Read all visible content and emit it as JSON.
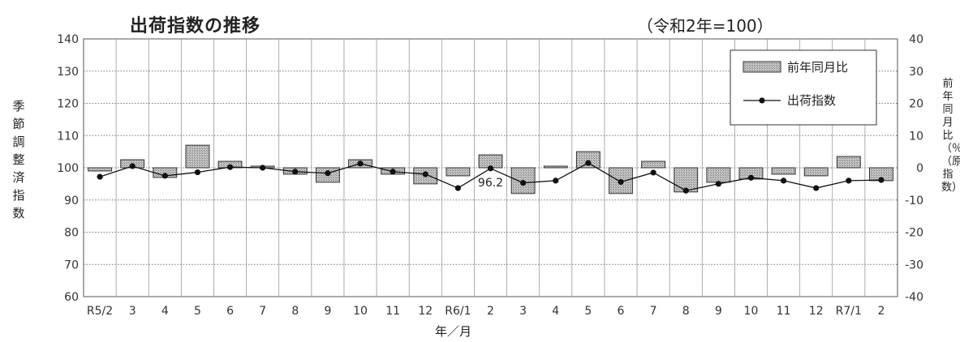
{
  "chart_data": {
    "type": "bar+line",
    "title": "出荷指数の推移",
    "subtitle": "（令和2年=100）",
    "xlabel": "年／月",
    "ylabel_left": "季節調整済指数",
    "ylabel_right": "前年同月比（％）（原指数）",
    "categories": [
      "R5/2",
      "3",
      "4",
      "5",
      "6",
      "7",
      "8",
      "9",
      "10",
      "11",
      "12",
      "R6/1",
      "2",
      "3",
      "4",
      "5",
      "6",
      "7",
      "8",
      "9",
      "10",
      "11",
      "12",
      "R7/1",
      "2"
    ],
    "left_axis": {
      "ylim": [
        60,
        140
      ],
      "ticks": [
        "140",
        "130",
        "120",
        "110",
        "100",
        "90",
        "80",
        "70",
        "60"
      ]
    },
    "right_axis": {
      "ylim": [
        -40,
        40
      ],
      "ticks": [
        "40",
        "30",
        "20",
        "10",
        "0",
        "-10",
        "-20",
        "-30",
        "-40"
      ]
    },
    "series": [
      {
        "name": "前年同月比",
        "type": "bar",
        "axis": "right",
        "values": [
          -1.0,
          2.5,
          -3.0,
          7.0,
          2.0,
          0.5,
          -2.0,
          -4.5,
          2.5,
          -2.0,
          -5.0,
          -2.5,
          4.0,
          -8.0,
          0.5,
          5.0,
          -8.0,
          2.0,
          -7.5,
          -4.5,
          -3.5,
          -2.0,
          -2.5,
          3.5,
          -4.0
        ]
      },
      {
        "name": "出荷指数",
        "type": "line",
        "axis": "left",
        "values": [
          97.2,
          100.5,
          97.5,
          98.6,
          100.2,
          100.0,
          98.8,
          98.3,
          101.3,
          98.8,
          98.0,
          93.7,
          99.8,
          95.3,
          96.0,
          101.5,
          95.6,
          98.5,
          92.9,
          95.0,
          96.9,
          96.0,
          93.7,
          96.0,
          96.2
        ]
      }
    ],
    "annotations": [
      {
        "category": "2",
        "text": "96.2"
      }
    ],
    "grid": true,
    "legend": "top-right"
  },
  "colors": {
    "bar_fill": "#bdbdbd",
    "line": "#111111",
    "grid": "#9a9a9a"
  }
}
